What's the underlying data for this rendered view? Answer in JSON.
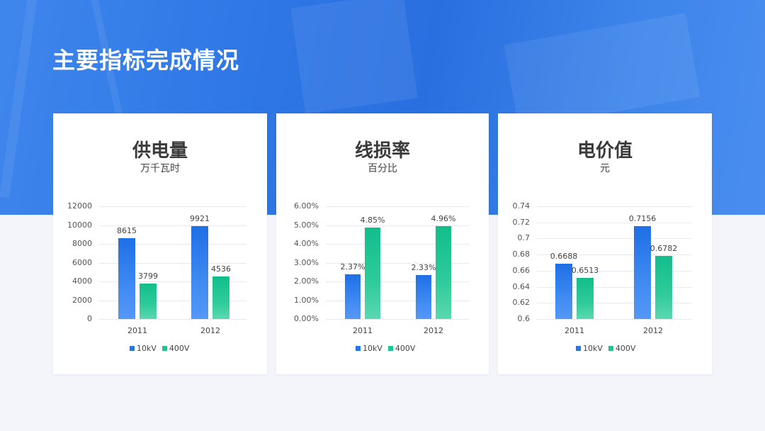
{
  "page": {
    "title": "主要指标完成情况"
  },
  "colors": {
    "banner": "#2f78e6",
    "series_10kv": "#2a74ea",
    "series_400v": "#1fc495",
    "card_bg": "#ffffff",
    "page_bg": "#f3f5fb"
  },
  "legend": [
    "10kV",
    "400V"
  ],
  "chart_data": [
    {
      "type": "bar",
      "title": "供电量",
      "subtitle": "万千瓦时",
      "categories": [
        "2011",
        "2012"
      ],
      "series": [
        {
          "name": "10kV",
          "values": [
            8615,
            9921
          ],
          "labels": [
            "8615",
            "9921"
          ]
        },
        {
          "name": "400V",
          "values": [
            3799,
            4536
          ],
          "labels": [
            "3799",
            "4536"
          ]
        }
      ],
      "yticks": [
        "0",
        "2000",
        "4000",
        "6000",
        "8000",
        "10000",
        "12000"
      ],
      "ylim": [
        0,
        12000
      ],
      "grid": true,
      "legend_position": "bottom"
    },
    {
      "type": "bar",
      "title": "线损率",
      "subtitle": "百分比",
      "categories": [
        "2011",
        "2012"
      ],
      "series": [
        {
          "name": "10kV",
          "values": [
            2.37,
            2.33
          ],
          "labels": [
            "2.37%",
            "2.33%"
          ]
        },
        {
          "name": "400V",
          "values": [
            4.85,
            4.96
          ],
          "labels": [
            "4.85%",
            "4.96%"
          ]
        }
      ],
      "yticks": [
        "0.00%",
        "1.00%",
        "2.00%",
        "3.00%",
        "4.00%",
        "5.00%",
        "6.00%"
      ],
      "ylim": [
        0,
        6
      ],
      "grid": true,
      "legend_position": "bottom"
    },
    {
      "type": "bar",
      "title": "电价值",
      "subtitle": "元",
      "categories": [
        "2011",
        "2012"
      ],
      "series": [
        {
          "name": "10kV",
          "values": [
            0.6688,
            0.7156
          ],
          "labels": [
            "0.6688",
            "0.7156"
          ]
        },
        {
          "name": "400V",
          "values": [
            0.6513,
            0.6782
          ],
          "labels": [
            "0.6513",
            "0.6782"
          ]
        }
      ],
      "yticks": [
        "0.6",
        "0.62",
        "0.64",
        "0.66",
        "0.68",
        "0.7",
        "0.72",
        "0.74"
      ],
      "ylim": [
        0.6,
        0.74
      ],
      "grid": true,
      "legend_position": "bottom"
    }
  ]
}
